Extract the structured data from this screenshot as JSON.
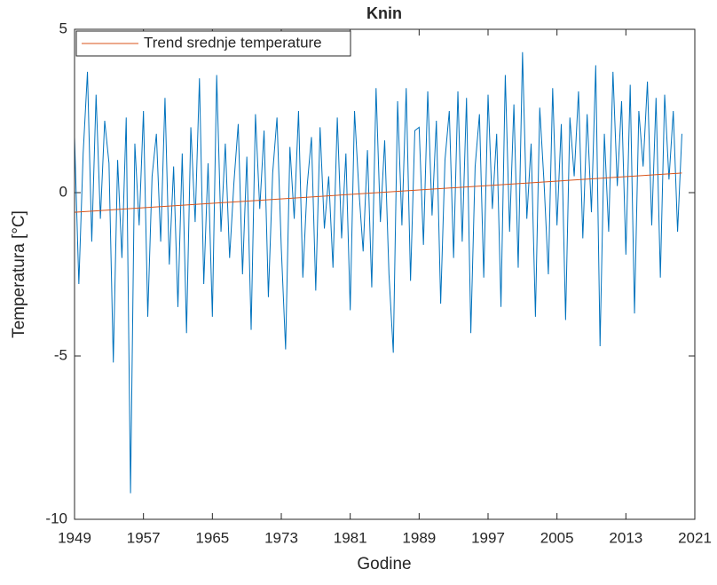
{
  "chart_data": {
    "type": "line",
    "title": "Knin",
    "x_label": "Godine",
    "y_label": "Temperatura [°C]",
    "xlim": [
      1949,
      2021
    ],
    "xticks": [
      1949,
      1957,
      1965,
      1973,
      1981,
      1989,
      1997,
      2005,
      2013,
      2021
    ],
    "ylim": [
      -10,
      5
    ],
    "yticks": [
      -10,
      -5,
      0,
      5
    ],
    "grid": false,
    "legend": "northwest",
    "series": [
      {
        "color": "#0072bd",
        "x": [
          1949,
          1949.5,
          1950,
          1950.5,
          1951,
          1951.5,
          1952,
          1952.5,
          1953,
          1953.5,
          1954,
          1954.5,
          1955,
          1955.5,
          1956,
          1956.5,
          1957,
          1957.5,
          1958,
          1958.5,
          1959,
          1959.5,
          1960,
          1960.5,
          1961,
          1961.5,
          1962,
          1962.5,
          1963,
          1963.5,
          1964,
          1964.5,
          1965,
          1965.5,
          1966,
          1966.5,
          1967,
          1967.5,
          1968,
          1968.5,
          1969,
          1969.5,
          1970,
          1970.5,
          1971,
          1971.5,
          1972,
          1972.5,
          1973,
          1973.5,
          1974,
          1974.5,
          1975,
          1975.5,
          1976,
          1976.5,
          1977,
          1977.5,
          1978,
          1978.5,
          1979,
          1979.5,
          1980,
          1980.5,
          1981,
          1981.5,
          1982,
          1982.5,
          1983,
          1983.5,
          1984,
          1984.5,
          1985,
          1985.5,
          1986,
          1986.5,
          1987,
          1987.5,
          1988,
          1988.5,
          1989,
          1989.5,
          1990,
          1990.5,
          1991,
          1991.5,
          1992,
          1992.5,
          1993,
          1993.5,
          1994,
          1994.5,
          1995,
          1995.5,
          1996,
          1996.5,
          1997,
          1997.5,
          1998,
          1998.5,
          1999,
          1999.5,
          2000,
          2000.5,
          2001,
          2001.5,
          2002,
          2002.5,
          2003,
          2003.5,
          2004,
          2004.5,
          2005,
          2005.5,
          2006,
          2006.5,
          2007,
          2007.5,
          2008,
          2008.5,
          2009,
          2009.5,
          2010,
          2010.5,
          2011,
          2011.5,
          2012,
          2012.5,
          2013,
          2013.5,
          2014,
          2014.5,
          2015,
          2015.5,
          2016,
          2016.5,
          2017,
          2017.5,
          2018,
          2018.5,
          2019,
          2019.5
        ],
        "values": [
          1.7,
          -2.8,
          1.2,
          3.7,
          -1.5,
          3.0,
          -0.8,
          2.2,
          0.9,
          -5.2,
          1.0,
          -2.0,
          2.3,
          -9.2,
          1.5,
          -1.0,
          2.5,
          -3.8,
          0.5,
          1.8,
          -1.5,
          2.9,
          -2.2,
          0.8,
          -3.5,
          1.2,
          -4.3,
          2.0,
          -0.9,
          3.5,
          -2.8,
          0.9,
          -3.8,
          3.6,
          -1.2,
          1.5,
          -2.0,
          0.3,
          2.1,
          -2.5,
          1.1,
          -4.2,
          2.4,
          -0.5,
          1.9,
          -3.2,
          0.6,
          2.3,
          -1.7,
          -4.8,
          1.4,
          -0.8,
          2.5,
          -2.6,
          0.2,
          1.7,
          -3.0,
          2.0,
          -1.1,
          0.5,
          -2.3,
          2.3,
          -1.4,
          1.2,
          -3.6,
          2.5,
          0.1,
          -1.8,
          1.3,
          -2.9,
          3.2,
          -0.9,
          1.6,
          -2.5,
          -4.9,
          2.8,
          -1.0,
          3.2,
          -2.7,
          1.9,
          2.0,
          -1.6,
          3.1,
          -0.7,
          2.2,
          -3.4,
          1.0,
          2.5,
          -2.0,
          3.1,
          -1.5,
          2.9,
          -4.3,
          0.8,
          2.4,
          -2.6,
          3.0,
          -0.5,
          1.8,
          -3.5,
          3.6,
          -1.2,
          2.7,
          -2.3,
          4.3,
          -0.8,
          1.5,
          -3.8,
          2.6,
          0.3,
          -2.5,
          3.2,
          -1.0,
          2.1,
          -3.9,
          2.3,
          0.5,
          3.1,
          -1.4,
          2.4,
          -0.6,
          3.9,
          -4.7,
          1.8,
          -1.2,
          3.7,
          0.2,
          2.8,
          -1.9,
          3.3,
          -3.7,
          2.5,
          0.8,
          3.4,
          -1.0,
          2.9,
          -2.6,
          3.0,
          0.4,
          2.5,
          -1.2,
          1.8
        ]
      },
      {
        "name": "Trend srednje temperature",
        "color": "#d95319",
        "x": [
          1949,
          2019.5
        ],
        "values": [
          -0.6,
          0.6
        ]
      }
    ]
  }
}
